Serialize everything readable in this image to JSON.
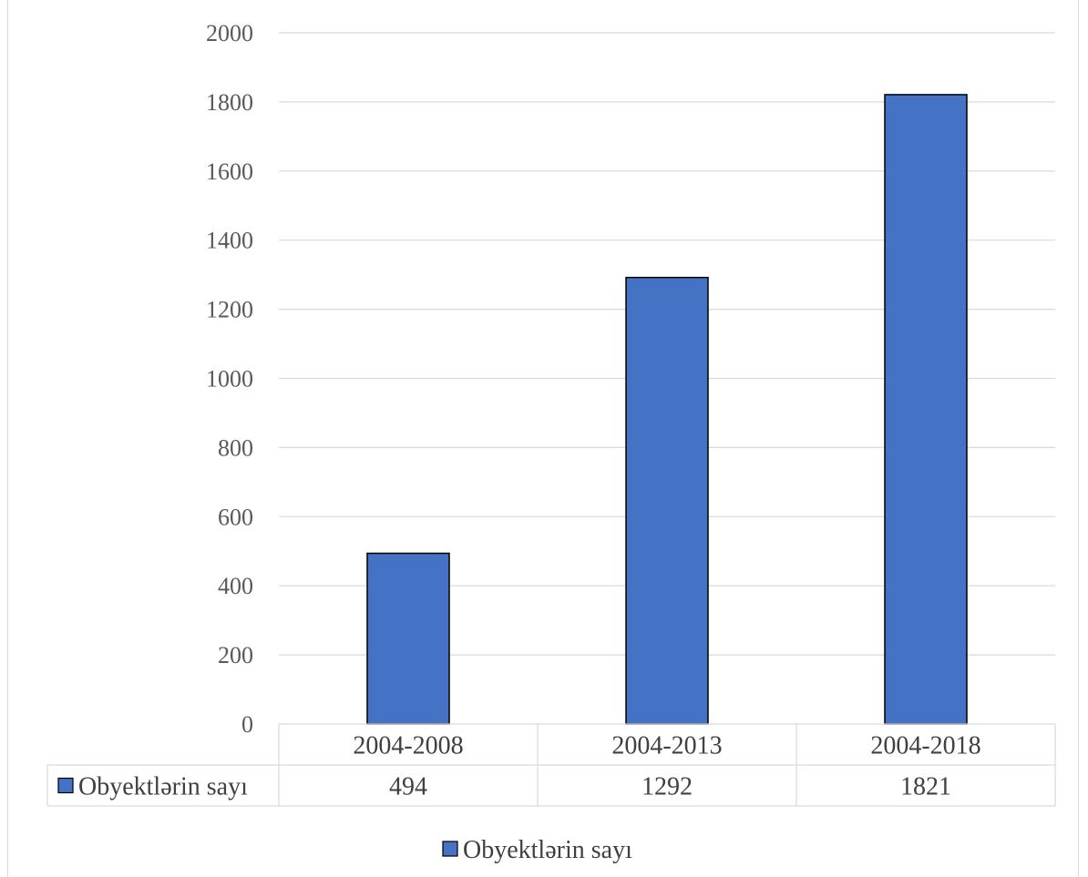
{
  "chart_data": {
    "type": "bar",
    "title": "",
    "categories": [
      "2004-2008",
      "2004-2013",
      "2004-2018"
    ],
    "series": [
      {
        "name": "Obyektlərin sayı",
        "values": [
          494,
          1292,
          1821
        ],
        "color": "#4472c4"
      }
    ],
    "ylim": [
      0,
      2000
    ],
    "yticks": [
      0,
      200,
      400,
      600,
      800,
      1000,
      1200,
      1400,
      1600,
      1800,
      2000
    ],
    "grid": true,
    "data_table": true,
    "legend": "bottom"
  }
}
